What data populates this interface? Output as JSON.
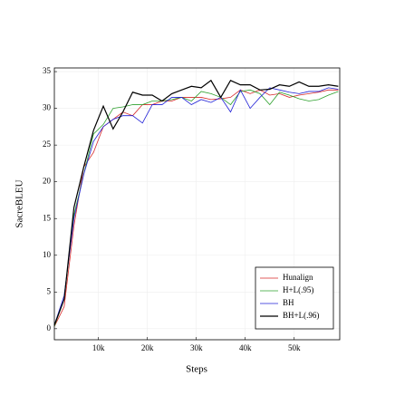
{
  "chart_data": {
    "type": "line",
    "x_label": "Steps",
    "y_label": "SacreBLEU",
    "x": [
      1000,
      3000,
      5000,
      7000,
      9000,
      11000,
      13000,
      15000,
      17000,
      19000,
      21000,
      23000,
      25000,
      27000,
      29000,
      31000,
      33000,
      35000,
      37000,
      39000,
      41000,
      43000,
      45000,
      47000,
      49000,
      51000,
      53000,
      55000,
      57000,
      59000
    ],
    "series": [
      {
        "name": "Hunalign",
        "color": "#d62728",
        "values": [
          0.3,
          3,
          14,
          22,
          24,
          27.5,
          28.5,
          29.5,
          29,
          30.5,
          30.5,
          31,
          31,
          31.5,
          31.5,
          31.5,
          31.2,
          31.3,
          31.5,
          32.5,
          32,
          32.5,
          31.8,
          32,
          31.5,
          31.8,
          32,
          32.2,
          32.5,
          32.5
        ]
      },
      {
        "name": "H+L(.95)",
        "color": "#2ca02c",
        "values": [
          0.3,
          4,
          15.5,
          21,
          26.5,
          27.8,
          30,
          30.2,
          30.5,
          30.5,
          31,
          31,
          31.2,
          31.5,
          31,
          32.3,
          32,
          31.5,
          30.5,
          32.3,
          32.5,
          32,
          30.5,
          32.2,
          31.8,
          31.3,
          31,
          31.2,
          31.8,
          32.3
        ]
      },
      {
        "name": "BH",
        "color": "#1f1fd6",
        "values": [
          0.5,
          4.5,
          15,
          21,
          25.5,
          27.5,
          28.5,
          29,
          29,
          28,
          30.5,
          30.5,
          31.5,
          31.5,
          30.5,
          31.2,
          30.8,
          31.5,
          29.5,
          32.5,
          30,
          31.5,
          32.8,
          32.5,
          32.2,
          32,
          32.3,
          32.3,
          32.8,
          32.6
        ]
      },
      {
        "name": "BH+L(.96)",
        "color": "#000000",
        "values": [
          0.5,
          4,
          16.5,
          22,
          27,
          30.3,
          27.2,
          29.5,
          32.2,
          31.8,
          31.8,
          31,
          32,
          32.5,
          33,
          32.8,
          33.8,
          31.5,
          33.8,
          33.2,
          33.2,
          32.5,
          32.6,
          33.2,
          33,
          33.6,
          33,
          33,
          33.2,
          33
        ]
      }
    ],
    "xlim": [
      1000,
      59300
    ],
    "xticks": [
      {
        "value": 10000,
        "label": "10k"
      },
      {
        "value": 20000,
        "label": "20k"
      },
      {
        "value": 30000,
        "label": "30k"
      },
      {
        "value": 40000,
        "label": "40k"
      },
      {
        "value": 50000,
        "label": "50k"
      }
    ],
    "ylim": [
      -1.5,
      35.5
    ],
    "yticks": [
      0,
      5,
      10,
      15,
      20,
      25,
      30,
      35
    ],
    "grid": true,
    "legend": "lower right"
  }
}
